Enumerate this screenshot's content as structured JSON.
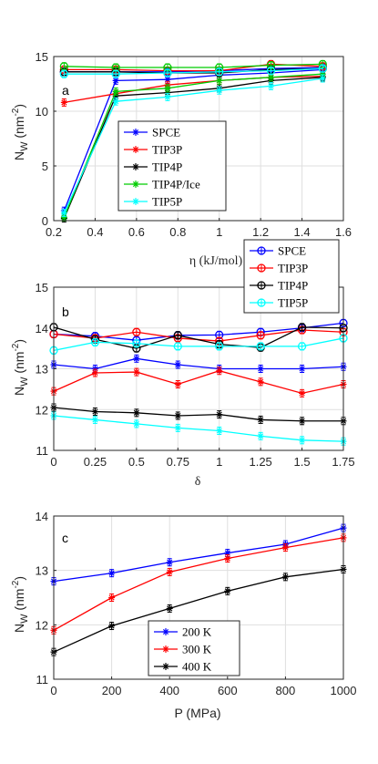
{
  "chart_data": [
    {
      "panel": "a",
      "type": "line",
      "xlabel": "η (kJ/mol)",
      "ylabel": "N_W (nm^-2)",
      "ylabel_main": "N",
      "ylabel_sub": "W",
      "ylabel_unit": " (nm",
      "ylabel_sup": "-2",
      "ylabel_close": ")",
      "xlim": [
        0.2,
        1.6
      ],
      "ylim": [
        0,
        15
      ],
      "xticks": [
        "0.2",
        "0.4",
        "0.6",
        "0.8",
        "1",
        "1.2",
        "1.4",
        "1.6"
      ],
      "yticks": [
        "0",
        "5",
        "10",
        "15"
      ],
      "grid": true,
      "legend_position": "lower-center",
      "x": [
        0.25,
        0.5,
        0.75,
        1.0,
        1.25,
        1.5
      ],
      "series": [
        {
          "name": "SPCE",
          "color": "#0000ff",
          "marker": "star",
          "values": [
            0.9,
            12.8,
            12.9,
            13.3,
            13.5,
            13.8
          ]
        },
        {
          "name": "TIP3P",
          "color": "#ff0000",
          "marker": "star",
          "values": [
            10.8,
            11.6,
            12.4,
            12.8,
            13.1,
            13.2
          ]
        },
        {
          "name": "TIP4P",
          "color": "#000000",
          "marker": "star",
          "values": [
            0.2,
            11.4,
            11.7,
            12.1,
            12.8,
            13.1
          ]
        },
        {
          "name": "TIP4P/Ice",
          "color": "#00cc00",
          "marker": "star",
          "values": [
            0.3,
            11.8,
            12.1,
            12.8,
            13.1,
            13.4
          ]
        },
        {
          "name": "TIP5P",
          "color": "#00ffff",
          "marker": "star",
          "values": [
            0.7,
            10.9,
            11.3,
            11.9,
            12.3,
            13.0
          ]
        },
        {
          "name": "",
          "color": "#0000ff",
          "marker": "circle",
          "values": [
            13.6,
            13.6,
            13.6,
            13.7,
            13.9,
            14.0
          ]
        },
        {
          "name": "",
          "color": "#ff0000",
          "marker": "circle",
          "values": [
            13.8,
            13.8,
            13.7,
            13.7,
            14.3,
            14.1
          ]
        },
        {
          "name": "",
          "color": "#000000",
          "marker": "circle",
          "values": [
            13.6,
            13.6,
            13.5,
            13.5,
            13.8,
            13.9
          ]
        },
        {
          "name": "",
          "color": "#00cc00",
          "marker": "circle",
          "values": [
            14.1,
            14.0,
            14.0,
            14.0,
            14.2,
            14.3
          ]
        },
        {
          "name": "",
          "color": "#00ffff",
          "marker": "circle",
          "values": [
            13.4,
            13.4,
            13.5,
            13.6,
            13.7,
            13.9
          ]
        }
      ]
    },
    {
      "panel": "b",
      "type": "line",
      "xlabel": "δ",
      "ylabel": "N_W (nm^-2)",
      "ylabel_main": "N",
      "ylabel_sub": "W",
      "ylabel_unit": " (nm",
      "ylabel_sup": "-2",
      "ylabel_close": ")",
      "xlim": [
        0,
        1.75
      ],
      "ylim": [
        11,
        15
      ],
      "xticks": [
        "0",
        "0.25",
        "0.5",
        "0.75",
        "1",
        "1.25",
        "1.5",
        "1.75"
      ],
      "yticks": [
        "11",
        "12",
        "13",
        "14",
        "15"
      ],
      "grid": true,
      "legend_position": "top-right",
      "x": [
        0,
        0.25,
        0.5,
        0.75,
        1.0,
        1.25,
        1.5,
        1.75
      ],
      "series": [
        {
          "name": "SPCE",
          "color": "#0000ff",
          "marker": "circle",
          "values": [
            13.85,
            13.8,
            13.7,
            13.82,
            13.83,
            13.9,
            14.0,
            14.12
          ]
        },
        {
          "name": "TIP3P",
          "color": "#ff0000",
          "marker": "circle",
          "values": [
            13.85,
            13.75,
            13.9,
            13.75,
            13.68,
            13.82,
            13.95,
            13.9
          ]
        },
        {
          "name": "TIP4P",
          "color": "#000000",
          "marker": "circle",
          "values": [
            14.02,
            13.72,
            13.5,
            13.82,
            13.6,
            13.52,
            14.02,
            14.0
          ]
        },
        {
          "name": "TIP5P",
          "color": "#00ffff",
          "marker": "circle",
          "values": [
            13.45,
            13.65,
            13.62,
            13.55,
            13.55,
            13.55,
            13.55,
            13.75
          ]
        },
        {
          "name": "",
          "color": "#0000ff",
          "marker": "star",
          "values": [
            13.1,
            13.0,
            13.25,
            13.1,
            13.0,
            13.0,
            13.0,
            13.05
          ]
        },
        {
          "name": "",
          "color": "#ff0000",
          "marker": "star",
          "values": [
            12.45,
            12.9,
            12.92,
            12.62,
            12.95,
            12.68,
            12.4,
            12.62
          ]
        },
        {
          "name": "",
          "color": "#000000",
          "marker": "star",
          "values": [
            12.05,
            11.95,
            11.92,
            11.85,
            11.88,
            11.75,
            11.72,
            11.72
          ]
        },
        {
          "name": "",
          "color": "#00ffff",
          "marker": "star",
          "values": [
            11.85,
            11.75,
            11.65,
            11.55,
            11.48,
            11.35,
            11.25,
            11.22
          ]
        }
      ]
    },
    {
      "panel": "c",
      "type": "line",
      "xlabel": "P (MPa)",
      "ylabel": "N_W (nm^-2)",
      "ylabel_main": "N",
      "ylabel_sub": "W",
      "ylabel_unit": " (nm",
      "ylabel_sup": "-2",
      "ylabel_close": ")",
      "xlim": [
        0,
        1000
      ],
      "ylim": [
        11,
        14
      ],
      "xticks": [
        "0",
        "200",
        "400",
        "600",
        "800",
        "1000"
      ],
      "yticks": [
        "11",
        "12",
        "13",
        "14"
      ],
      "grid": true,
      "legend_position": "bottom-center",
      "x": [
        0,
        200,
        400,
        600,
        800,
        1000
      ],
      "series": [
        {
          "name": "200 K",
          "color": "#0000ff",
          "marker": "star",
          "values": [
            12.8,
            12.95,
            13.15,
            13.32,
            13.48,
            13.78
          ]
        },
        {
          "name": "300 K",
          "color": "#ff0000",
          "marker": "star",
          "values": [
            11.9,
            12.5,
            12.97,
            13.22,
            13.42,
            13.6
          ]
        },
        {
          "name": "400 K",
          "color": "#000000",
          "marker": "star",
          "values": [
            11.5,
            11.98,
            12.3,
            12.62,
            12.88,
            13.02
          ]
        }
      ]
    }
  ]
}
